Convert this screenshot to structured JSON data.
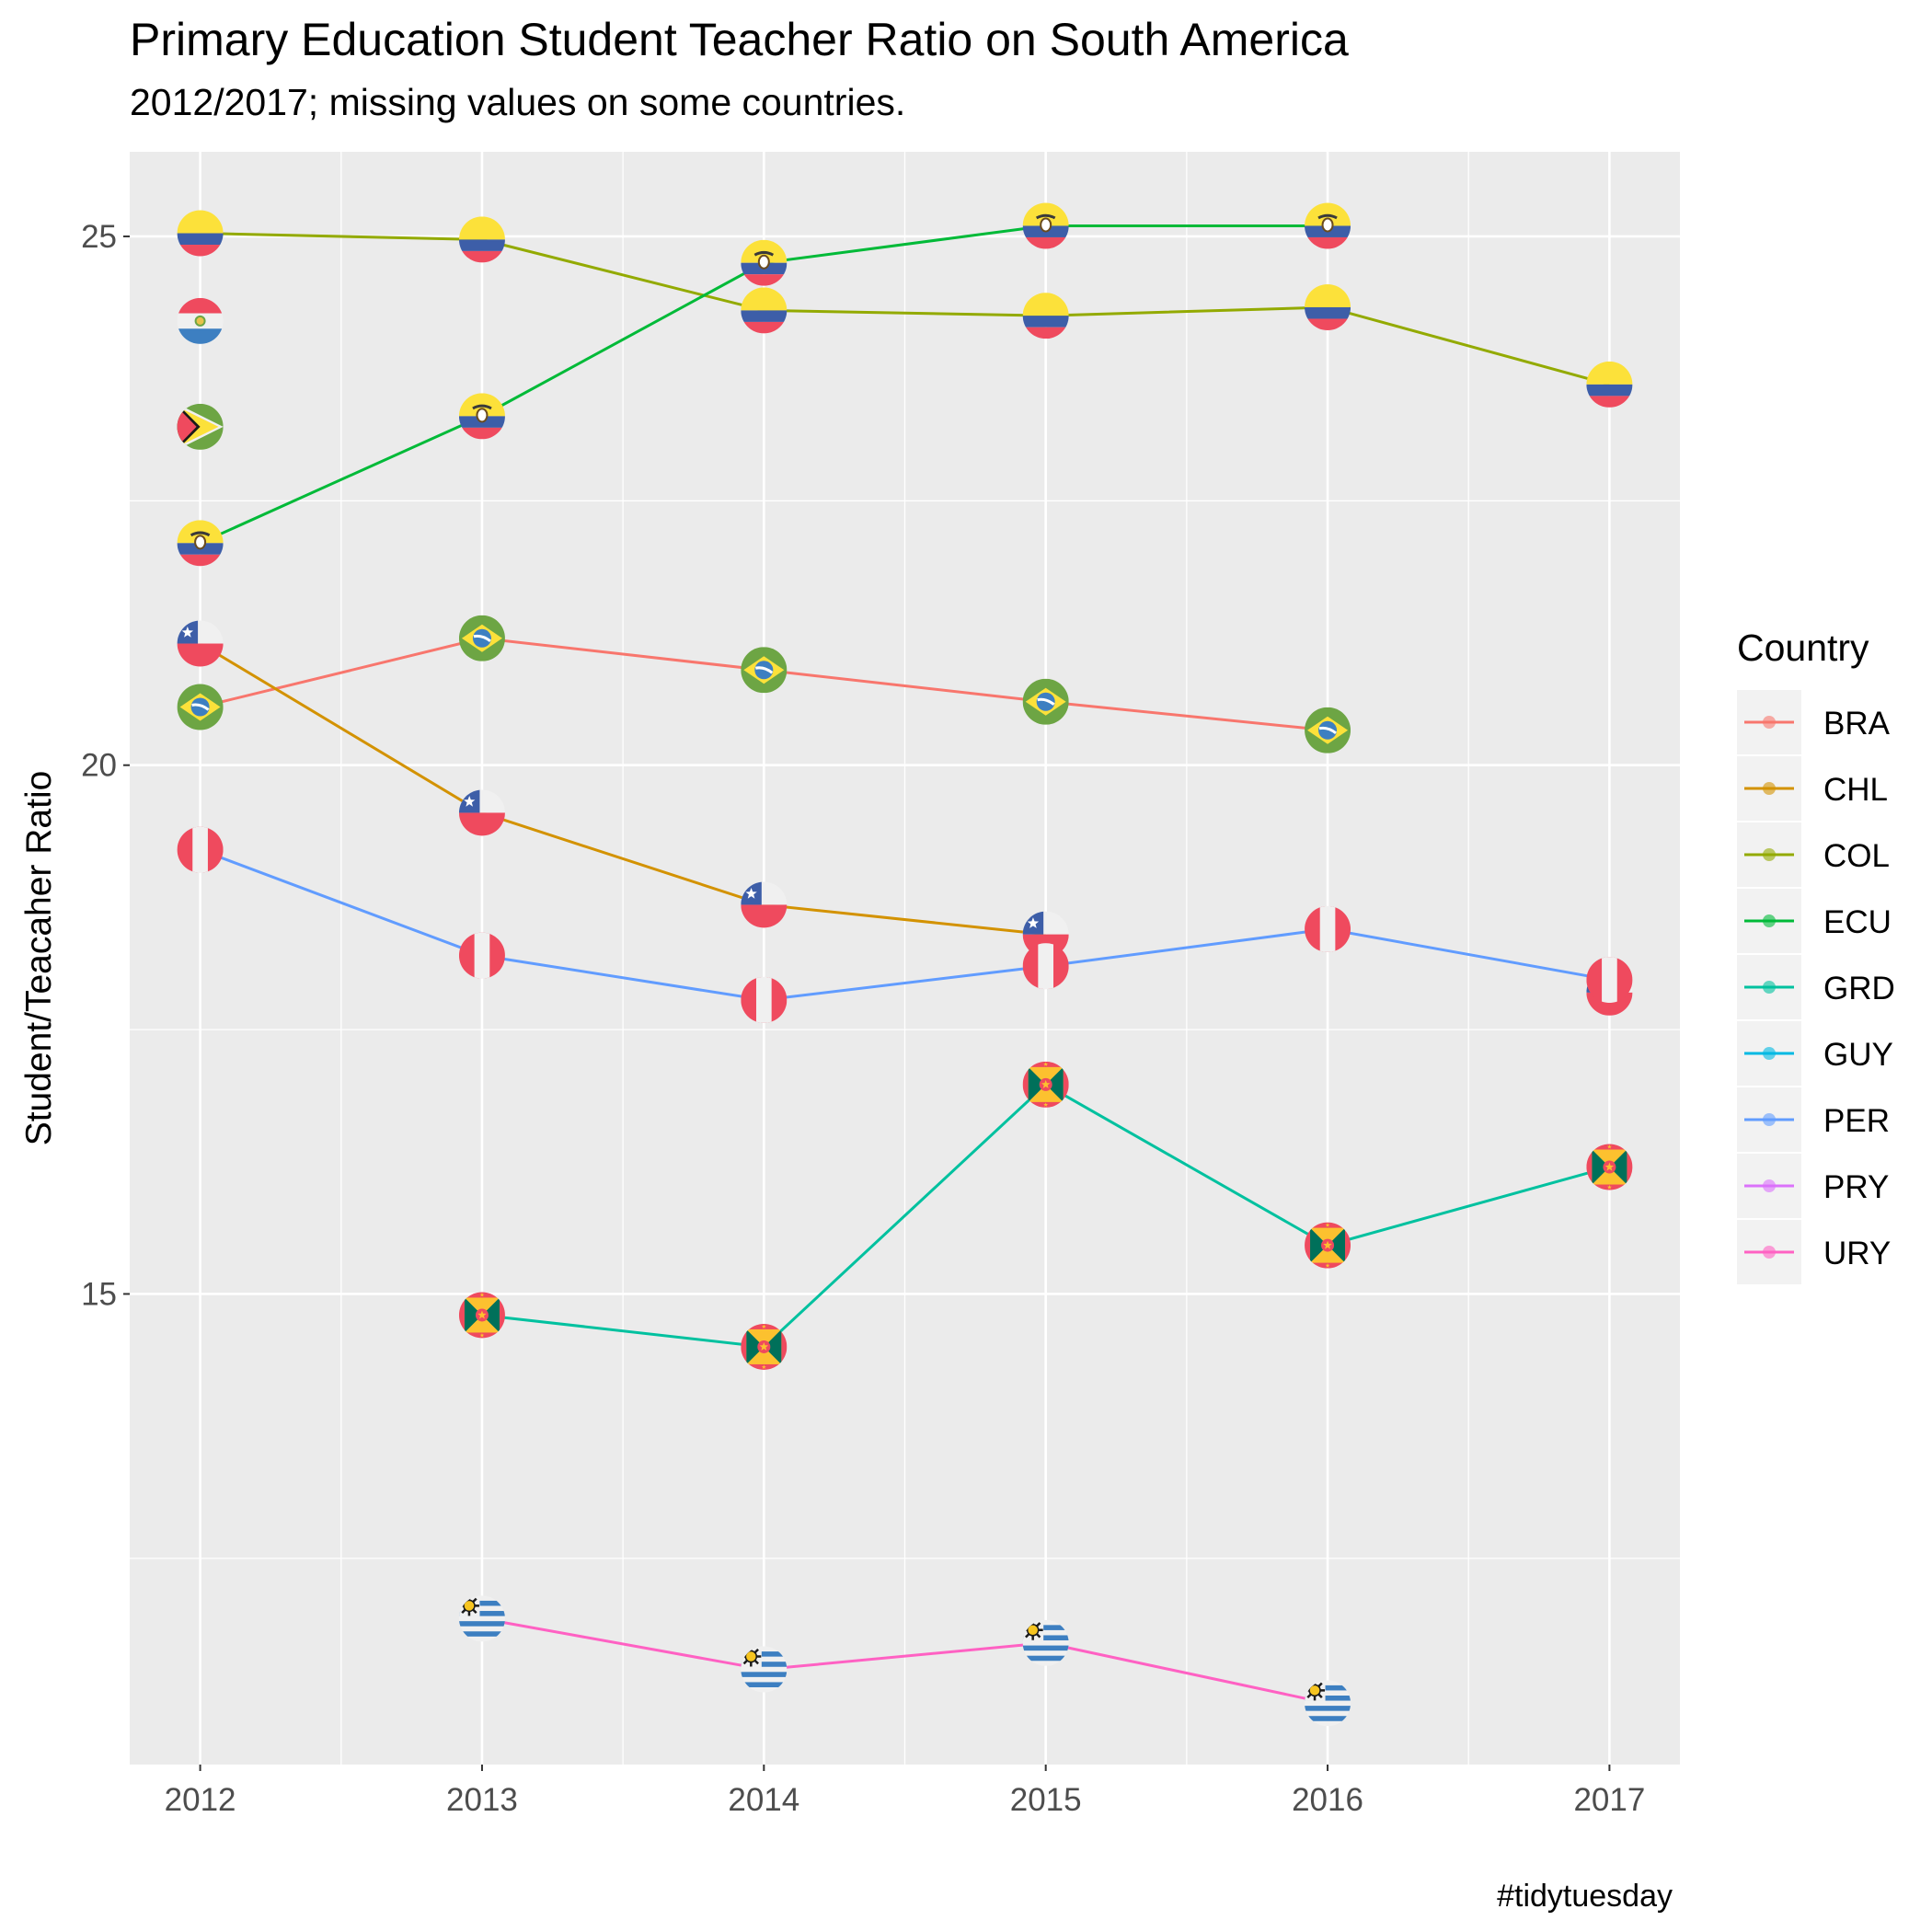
{
  "title": "Primary Education Student Teacher Ratio on South America",
  "subtitle": "2012/2017; missing values on some countries.",
  "caption": "#tidytuesday",
  "chart_data": {
    "type": "line",
    "title": "Primary Education Student Teacher Ratio on South America",
    "subtitle": "2012/2017; missing values on some countries.",
    "xlabel": "",
    "ylabel": "Student/Teacaher Ratio",
    "x": [
      2012,
      2013,
      2014,
      2015,
      2016,
      2017
    ],
    "x_tick_labels": [
      "2012",
      "2013",
      "2014",
      "2015",
      "2016",
      "2017"
    ],
    "y_ticks": [
      15,
      20,
      25
    ],
    "y_tick_labels": [
      "15",
      "20",
      "25"
    ],
    "xlim": [
      2011.75,
      2017.25
    ],
    "ylim": [
      10.55,
      25.8
    ],
    "grid": true,
    "legend": {
      "title": "Country",
      "position": "right"
    },
    "series": [
      {
        "name": "BRA",
        "color": "#F8766D",
        "flag": "brazil-flag",
        "values": [
          20.55,
          21.2,
          20.9,
          20.6,
          20.33,
          null
        ]
      },
      {
        "name": "CHL",
        "color": "#D39200",
        "flag": "chile-flag",
        "values": [
          21.15,
          19.55,
          18.68,
          18.4,
          null,
          17.85
        ]
      },
      {
        "name": "COL",
        "color": "#93AA00",
        "flag": "colombia-flag",
        "values": [
          25.03,
          24.97,
          24.3,
          24.25,
          24.33,
          23.6
        ]
      },
      {
        "name": "ECU",
        "color": "#00BA38",
        "flag": "ecuador-flag",
        "values": [
          22.1,
          23.3,
          24.75,
          25.1,
          25.1,
          null
        ]
      },
      {
        "name": "GRD",
        "color": "#00C19F",
        "flag": "grenada-flag",
        "values": [
          null,
          14.8,
          14.5,
          16.98,
          15.46,
          16.2
        ]
      },
      {
        "name": "GUY",
        "color": "#00B9E3",
        "flag": "guyana-flag",
        "values": [
          23.2,
          null,
          null,
          null,
          null,
          null
        ]
      },
      {
        "name": "PER",
        "color": "#619CFF",
        "flag": "peru-flag",
        "values": [
          19.2,
          18.2,
          17.78,
          18.1,
          18.45,
          17.97
        ]
      },
      {
        "name": "PRY",
        "color": "#DB72FB",
        "flag": "paraguay-flag",
        "values": [
          24.2,
          null,
          null,
          null,
          null,
          null
        ]
      },
      {
        "name": "URY",
        "color": "#FF61C3",
        "flag": "uruguay-flag",
        "values": [
          null,
          11.93,
          11.45,
          11.7,
          11.13,
          null
        ]
      }
    ]
  }
}
